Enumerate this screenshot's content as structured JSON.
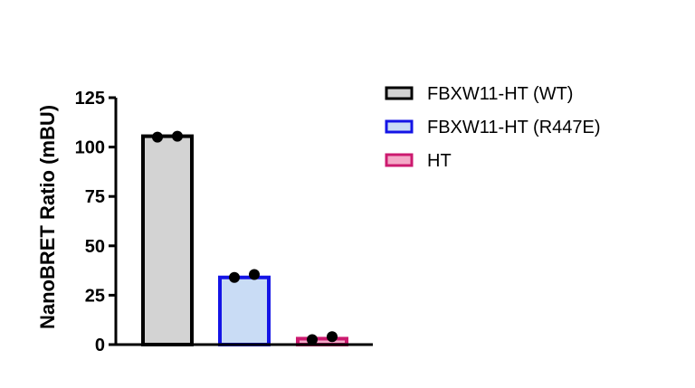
{
  "chart_data": {
    "type": "bar",
    "ylabel": "NanoBRET Ratio (mBU)",
    "ylim": [
      0,
      125
    ],
    "yticks": [
      0,
      25,
      50,
      75,
      100,
      125
    ],
    "categories": [
      "FBXW11-HT (WT)",
      "FBXW11-HT (R447E)",
      "HT"
    ],
    "values": [
      105.5,
      34.0,
      3.0
    ],
    "replicates": [
      [
        105.0,
        105.5
      ],
      [
        34.0,
        35.5
      ],
      [
        2.5,
        4.0
      ]
    ],
    "colors": {
      "fill": [
        "#d3d3d3",
        "#c9dcf5",
        "#f4a9c7"
      ],
      "stroke": [
        "#000000",
        "#1414e6",
        "#cc1a6f"
      ]
    },
    "legend": {
      "position": "right",
      "entries": [
        "FBXW11-HT (WT)",
        "FBXW11-HT (R447E)",
        "HT"
      ]
    },
    "grid": false
  }
}
